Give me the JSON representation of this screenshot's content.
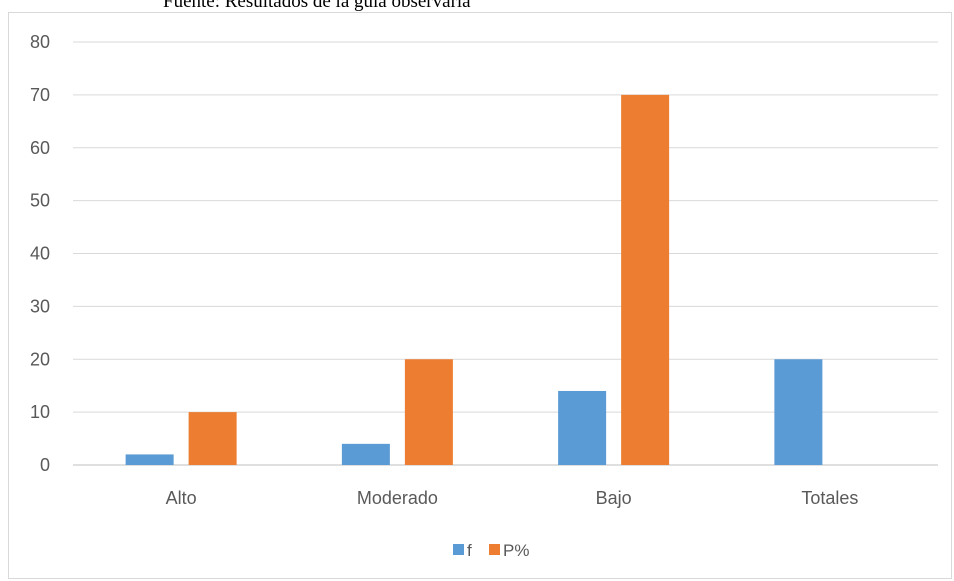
{
  "caption": "Fuente: Resultados de la guía observaría",
  "chart_data": {
    "type": "bar",
    "categories": [
      "Alto",
      "Moderado",
      "Bajo",
      "Totales"
    ],
    "series": [
      {
        "name": "f",
        "values": [
          2,
          4,
          14,
          20
        ],
        "color": "#5b9bd5"
      },
      {
        "name": "P%",
        "values": [
          10,
          20,
          70,
          null
        ],
        "color": "#ed7d31"
      }
    ],
    "ylim": [
      0,
      80
    ],
    "yticks": [
      0,
      10,
      20,
      30,
      40,
      50,
      60,
      70,
      80
    ],
    "grid": true,
    "legend_position": "bottom"
  }
}
